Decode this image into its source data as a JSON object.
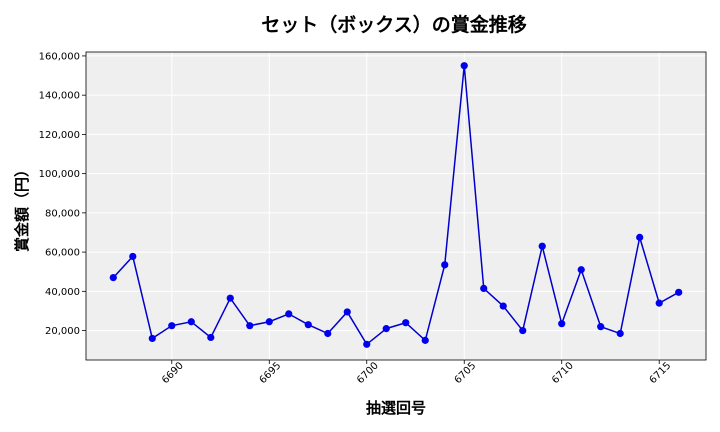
{
  "chart_data": {
    "type": "line",
    "title": "セット（ボックス）の賞金推移",
    "xlabel": "抽選回号",
    "ylabel": "賞金額（円）",
    "xlim": [
      6685.6,
      6717.4
    ],
    "ylim": [
      5000,
      162000
    ],
    "x_ticks": [
      6690,
      6695,
      6700,
      6705,
      6710,
      6715
    ],
    "x_tick_labels": [
      "6690",
      "6695",
      "6700",
      "6705",
      "6710",
      "6715"
    ],
    "y_ticks": [
      20000,
      40000,
      60000,
      80000,
      100000,
      120000,
      140000,
      160000
    ],
    "y_tick_labels": [
      "20,000",
      "40,000",
      "60,000",
      "80,000",
      "100,000",
      "120,000",
      "140,000",
      "160,000"
    ],
    "grid": true,
    "colors": {
      "line": "#0000cc",
      "marker": "#0000ee",
      "plot_bg": "#efefef",
      "grid": "#ffffff"
    },
    "series": [
      {
        "x": [
          6687,
          6688,
          6689,
          6690,
          6691,
          6692,
          6693,
          6694,
          6695,
          6696,
          6697,
          6698,
          6699,
          6700,
          6701,
          6702,
          6703,
          6704,
          6705,
          6706,
          6707,
          6708,
          6709,
          6710,
          6711,
          6712,
          6713,
          6714,
          6715,
          6716
        ],
        "values": [
          47000,
          57800,
          16000,
          22500,
          24500,
          16500,
          36500,
          22500,
          24500,
          28500,
          23000,
          18500,
          29500,
          13000,
          21000,
          24000,
          15000,
          53500,
          155000,
          41500,
          32500,
          20000,
          63000,
          23500,
          51000,
          22000,
          18500,
          67500,
          34000,
          39500
        ]
      }
    ]
  }
}
